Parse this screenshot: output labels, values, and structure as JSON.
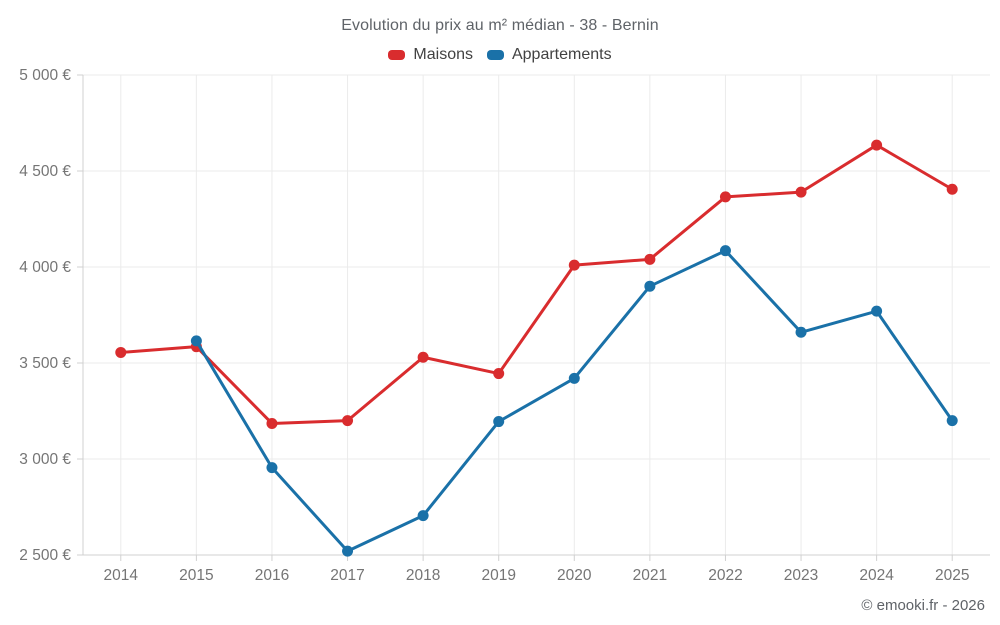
{
  "chart": {
    "title": "Evolution du prix au m² médian - 38 - Bernin",
    "watermark": "© emooki.fr - 2026"
  },
  "chart_data": {
    "type": "line",
    "title": "Evolution du prix au m² médian - 38 - Bernin",
    "categories": [
      "2014",
      "2015",
      "2016",
      "2017",
      "2018",
      "2019",
      "2020",
      "2021",
      "2022",
      "2023",
      "2024",
      "2025"
    ],
    "series": [
      {
        "name": "Maisons",
        "color": "#d92c2e",
        "values": [
          3555,
          3585,
          3185,
          3200,
          3530,
          3445,
          4010,
          4040,
          4365,
          4390,
          4635,
          4405
        ]
      },
      {
        "name": "Appartements",
        "color": "#1a71a8",
        "values": [
          null,
          3615,
          2955,
          2520,
          2705,
          3195,
          3420,
          3900,
          4085,
          3660,
          3770,
          3200
        ]
      }
    ],
    "ylim": [
      2500,
      5000
    ],
    "ytick_values": [
      2500,
      3000,
      3500,
      4000,
      4500,
      5000
    ],
    "ytick_labels": [
      "2 500 €",
      "3 000 €",
      "3 500 €",
      "4 000 €",
      "4 500 €",
      "5 000 €"
    ],
    "xlabel": "",
    "ylabel": "",
    "grid": true,
    "legend_position": "top",
    "colors": {
      "grid": "#ebebeb",
      "axis": "#d0d0d0",
      "tick_label": "#757575",
      "title_text": "#5f6368"
    }
  }
}
